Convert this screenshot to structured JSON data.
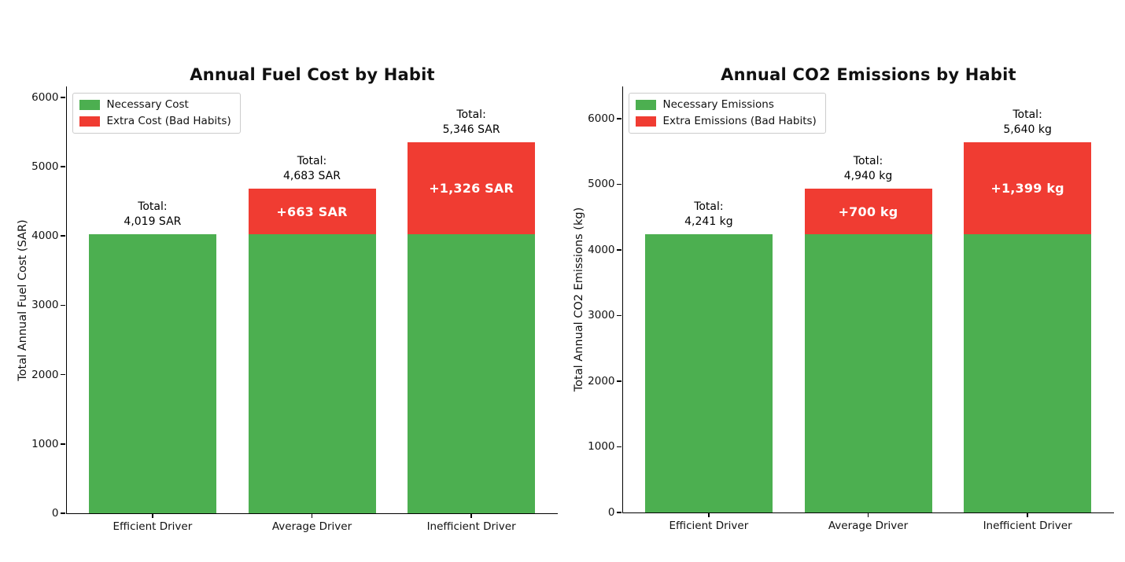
{
  "page": {
    "background": "#ffffff"
  },
  "chart_data": [
    {
      "type": "bar",
      "stacked": true,
      "title": "Annual Fuel Cost by Habit",
      "xlabel": "",
      "ylabel": "Total Annual Fuel Cost (SAR)",
      "categories": [
        "Efficient Driver",
        "Average Driver",
        "Inefficient Driver"
      ],
      "series": [
        {
          "name": "Necessary Cost",
          "color": "#4caf50",
          "values": [
            4019,
            4020,
            4020
          ]
        },
        {
          "name": "Extra Cost (Bad Habits)",
          "color": "#f03c32",
          "values": [
            0,
            663,
            1326
          ]
        }
      ],
      "totals": [
        4019,
        4683,
        5346
      ],
      "annotations": {
        "total_prefix": "Total:",
        "total_labels": [
          "4,019 SAR",
          "4,683 SAR",
          "5,346 SAR"
        ],
        "segment_labels": [
          "",
          "+663 SAR",
          "+1,326 SAR"
        ],
        "segment_label_color": "#ffffff"
      },
      "yticks": [
        0,
        1000,
        2000,
        3000,
        4000,
        5000,
        6000
      ],
      "ylim": [
        0,
        6156
      ],
      "grid": false,
      "legend_position": "upper left"
    },
    {
      "type": "bar",
      "stacked": true,
      "title": "Annual CO2 Emissions by Habit",
      "xlabel": "",
      "ylabel": "Total Annual CO2 Emissions (kg)",
      "categories": [
        "Efficient Driver",
        "Average Driver",
        "Inefficient Driver"
      ],
      "series": [
        {
          "name": "Necessary Emissions",
          "color": "#4caf50",
          "values": [
            4241,
            4240,
            4241
          ]
        },
        {
          "name": "Extra Emissions (Bad Habits)",
          "color": "#f03c32",
          "values": [
            0,
            700,
            1399
          ]
        }
      ],
      "totals": [
        4241,
        4940,
        5640
      ],
      "annotations": {
        "total_prefix": "Total:",
        "total_labels": [
          "4,241 kg",
          "4,940 kg",
          "5,640 kg"
        ],
        "segment_labels": [
          "",
          "+700 kg",
          "+1,399 kg"
        ],
        "segment_label_color": "#ffffff"
      },
      "yticks": [
        0,
        1000,
        2000,
        3000,
        4000,
        5000,
        6000
      ],
      "ylim": [
        0,
        6491
      ],
      "grid": false,
      "legend_position": "upper left"
    }
  ]
}
